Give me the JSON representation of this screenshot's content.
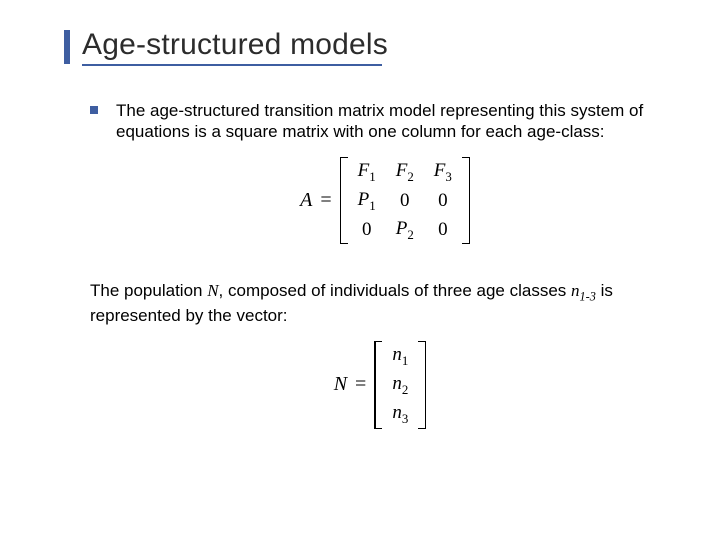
{
  "colors": {
    "accent": "#3e5ea1",
    "underline": "#3e5ea1",
    "bullet": "#3e5ea1",
    "title_text": "#2c2c2c",
    "body_text": "#000000",
    "background": "#ffffff"
  },
  "typography": {
    "title_fontsize": 30,
    "body_fontsize": 17,
    "math_fontsize": 20,
    "title_family": "Verdana",
    "body_family": "Verdana",
    "math_family": "Times New Roman"
  },
  "title": "Age-structured models",
  "bullet1": "The age-structured transition matrix model representing this system of equations is a square matrix with one column for each age-class:",
  "matrix_eq": {
    "lhs": "A",
    "rows": [
      [
        "F",
        "1",
        "F",
        "2",
        "F",
        "3"
      ],
      [
        "P",
        "1",
        "0",
        "",
        "0",
        ""
      ],
      [
        "0",
        "",
        "P",
        "2",
        "0",
        ""
      ]
    ],
    "display_rows": [
      [
        "F₁",
        "F₂",
        "F₃"
      ],
      [
        "P₁",
        "0",
        "0"
      ],
      [
        "0",
        "P₂",
        "0"
      ]
    ]
  },
  "para2_parts": {
    "a": "The population ",
    "b": "N",
    "c": ", composed of individuals of three age classes ",
    "d": "n",
    "e": "1-3",
    "f": " is represented by the  vector:"
  },
  "vector_eq": {
    "lhs": "N",
    "rows": [
      "n₁",
      "n₂",
      "n₃"
    ]
  }
}
